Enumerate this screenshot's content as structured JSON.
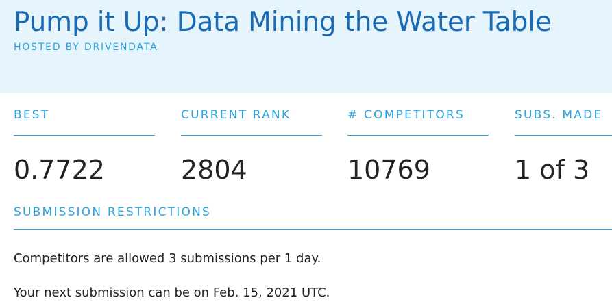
{
  "header": {
    "title": "Pump it Up: Data Mining the Water Table",
    "hosted_by": "HOSTED BY DRIVENDATA"
  },
  "stats": [
    {
      "label": "BEST",
      "value": "0.7722"
    },
    {
      "label": "CURRENT RANK",
      "value": "2804"
    },
    {
      "label": "# COMPETITORS",
      "value": "10769"
    },
    {
      "label": "SUBS. MADE",
      "value": "1 of 3"
    }
  ],
  "restrictions": {
    "title": "SUBMISSION RESTRICTIONS",
    "line1": "Competitors are allowed 3 submissions per 1 day.",
    "line2": "Your next submission can be on Feb. 15, 2021 UTC."
  },
  "colors": {
    "header_bg": "#e6f4fc",
    "title": "#1a6bb5",
    "accent": "#2aa4de",
    "text": "#222222"
  }
}
